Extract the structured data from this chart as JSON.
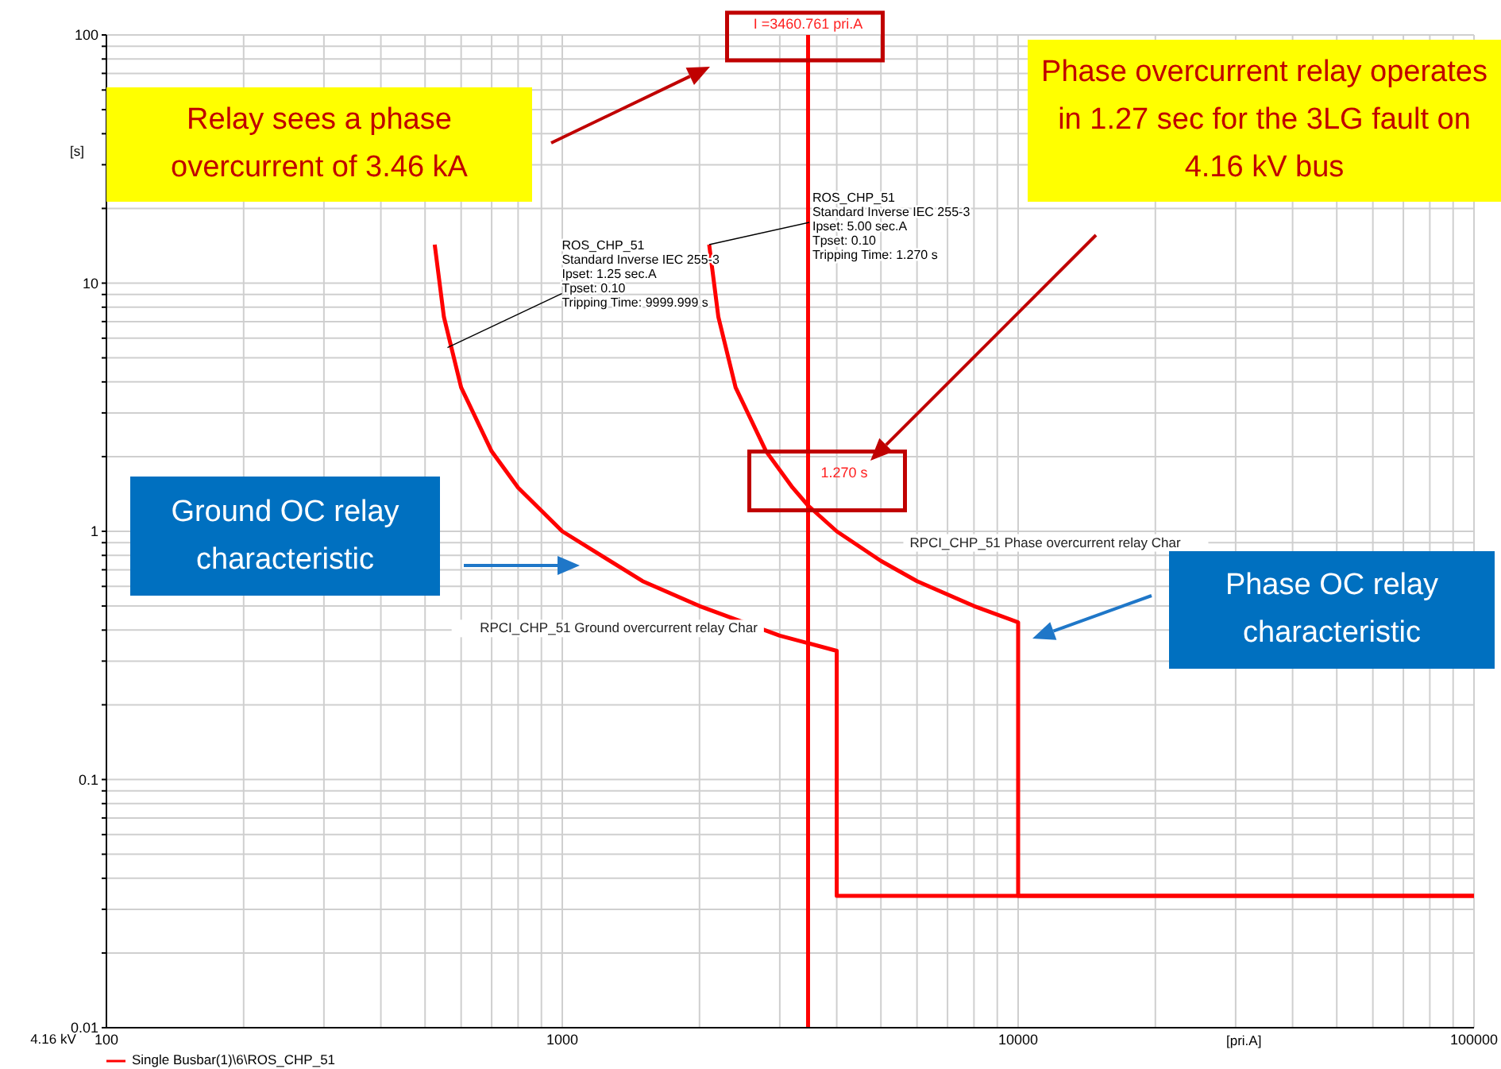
{
  "chart_data": {
    "type": "line",
    "xlabel": "[pri.A]",
    "ylabel": "[s]",
    "log": "xy",
    "grid": true,
    "legend": "bottom left",
    "marker": "none",
    "line_style": "solid",
    "xlim": [
      100,
      100000
    ],
    "xticks": [
      100,
      {
        "value": 200,
        "label": null
      },
      {
        "value": 300,
        "label": null
      },
      {
        "value": 400,
        "label": null
      },
      {
        "value": 500,
        "label": null
      },
      {
        "value": 600,
        "label": null
      },
      {
        "value": 700,
        "label": null
      },
      {
        "value": 800,
        "label": null
      },
      {
        "value": 900,
        "label": null
      },
      1000,
      {
        "value": 2000,
        "label": null
      },
      {
        "value": 3000,
        "label": null
      },
      {
        "value": 4000,
        "label": null
      },
      {
        "value": 5000,
        "label": null
      },
      {
        "value": 6000,
        "label": null
      },
      {
        "value": 7000,
        "label": null
      },
      {
        "value": 8000,
        "label": null
      },
      {
        "value": 9000,
        "label": null
      },
      10000,
      {
        "value": 20000,
        "label": null
      },
      {
        "value": 30000,
        "label": null
      },
      {
        "value": 40000,
        "label": null
      },
      {
        "value": 50000,
        "label": null
      },
      {
        "value": 60000,
        "label": null
      },
      {
        "value": 70000,
        "label": null
      },
      {
        "value": 80000,
        "label": null
      },
      {
        "value": 90000,
        "label": null
      },
      100000
    ],
    "ylim": [
      0.01,
      100
    ],
    "yticks": [
      0.01,
      {
        "value": 0.02,
        "label": null
      },
      {
        "value": 0.03,
        "label": null
      },
      {
        "value": 0.04,
        "label": null
      },
      {
        "value": 0.05,
        "label": null
      },
      {
        "value": 0.06,
        "label": null
      },
      {
        "value": 0.07,
        "label": null
      },
      {
        "value": 0.08,
        "label": null
      },
      {
        "value": 0.09,
        "label": null
      },
      0.1,
      {
        "value": 0.2,
        "label": null
      },
      {
        "value": 0.3,
        "label": null
      },
      {
        "value": 0.4,
        "label": null
      },
      {
        "value": 0.5,
        "label": null
      },
      {
        "value": 0.6,
        "label": null
      },
      {
        "value": 0.7,
        "label": null
      },
      {
        "value": 0.8,
        "label": null
      },
      {
        "value": 0.9,
        "label": null
      },
      1,
      {
        "value": 2,
        "label": null
      },
      {
        "value": 3,
        "label": null
      },
      {
        "value": 4,
        "label": null
      },
      {
        "value": 5,
        "label": null
      },
      {
        "value": 6,
        "label": null
      },
      {
        "value": 7,
        "label": null
      },
      {
        "value": 8,
        "label": null
      },
      {
        "value": 9,
        "label": null
      },
      10,
      {
        "value": 20,
        "label": null
      },
      {
        "value": 30,
        "label": null
      },
      {
        "value": 40,
        "label": null
      },
      {
        "value": 50,
        "label": null
      },
      {
        "value": 60,
        "label": null
      },
      {
        "value": 70,
        "label": null
      },
      {
        "value": 80,
        "label": null
      },
      {
        "value": 90,
        "label": null
      },
      100
    ],
    "series": [
      {
        "name": "RPCI_CHP_51 Ground overcurrent relay Char",
        "color": "#ff0000",
        "x": [
          525,
          550,
          600,
          700,
          800,
          1000,
          1500,
          2000,
          3000,
          4000,
          4000,
          100000
        ],
        "values": [
          14.3,
          7.3,
          3.8,
          2.1,
          1.5,
          1.0,
          0.63,
          0.5,
          0.38,
          0.33,
          0.034,
          0.034
        ]
      },
      {
        "name": "RPCI_CHP_51 Phase overcurrent relay Char",
        "color": "#ff0000",
        "x": [
          2100,
          2200,
          2400,
          2800,
          3200,
          3460.761,
          4000,
          5000,
          6000,
          8000,
          10000,
          10000,
          100000
        ],
        "values": [
          14.3,
          7.3,
          3.8,
          2.1,
          1.5,
          1.27,
          1.0,
          0.76,
          0.63,
          0.5,
          0.43,
          0.034,
          0.034
        ]
      },
      {
        "name": "Single Busbar(1)\\6\\ROS_CHP_51",
        "color": "#ff0000",
        "x": [
          3460.761,
          3460.761
        ],
        "values": [
          0.01,
          100
        ]
      }
    ],
    "annotations": [
      "Relay sees a phase overcurrent of 3.46 kA",
      "Phase overcurrent relay operates in 1.27 sec for the 3LG fault on 4.16 kV bus",
      "Ground OC relay characteristic",
      "Phase OC relay characteristic",
      {
        "text": "I =3460.761 pri.A",
        "x": 3460.761,
        "y": 100
      },
      {
        "text": "1.270 s",
        "x": 3460.761,
        "y": 1.27
      },
      {
        "text": "ROS_CHP_51\nStandard Inverse  IEC 255-3\nIpset: 1.25 sec.A\nTpset: 0.10\nTripping Time: 9999.999 s",
        "x": 560,
        "y": 5.5
      },
      {
        "text": "ROS_CHP_51\nStandard Inverse  IEC 255-3\nIpset: 5.00 sec.A\nTpset: 0.10\nTripping Time: 1.270 s",
        "x": 2100,
        "y": 14.3
      },
      "4.16 kV"
    ]
  }
}
